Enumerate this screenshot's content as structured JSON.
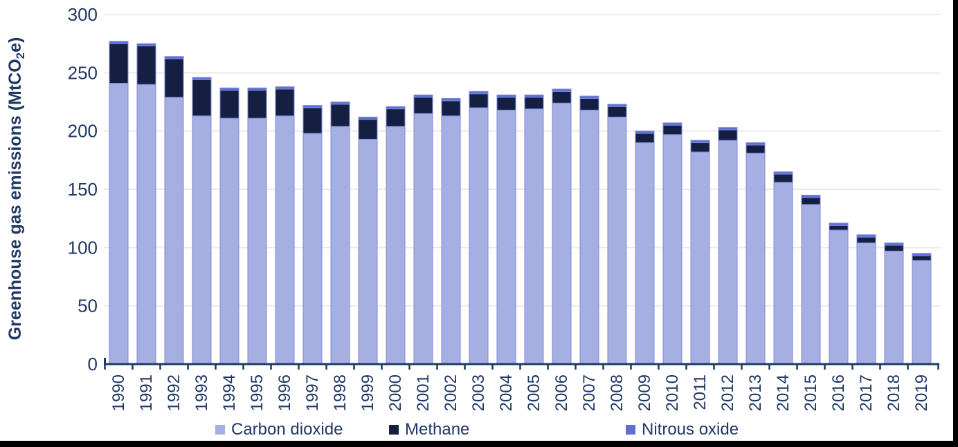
{
  "chart_data": {
    "type": "bar",
    "stacked": true,
    "title": "",
    "ylabel": "Greenhouse gas emissions (MtCO₂e)",
    "xlabel": "",
    "ylim": [
      0,
      300
    ],
    "yticks": [
      0,
      50,
      100,
      150,
      200,
      250,
      300
    ],
    "grid": true,
    "legend_position": "bottom",
    "categories": [
      "1990",
      "1991",
      "1992",
      "1993",
      "1994",
      "1995",
      "1996",
      "1997",
      "1998",
      "1999",
      "2000",
      "2001",
      "2002",
      "2003",
      "2004",
      "2005",
      "2006",
      "2007",
      "2008",
      "2009",
      "2010",
      "2011",
      "2012",
      "2013",
      "2014",
      "2015",
      "2016",
      "2017",
      "2018",
      "2019"
    ],
    "series": [
      {
        "name": "Carbon dioxide",
        "color": "#a6afe2",
        "values": [
          241,
          240,
          229,
          213,
          211,
          211,
          213,
          198,
          204,
          193,
          204,
          215,
          213,
          220,
          218,
          219,
          224,
          218,
          212,
          190,
          197,
          182,
          192,
          181,
          156,
          137,
          115,
          104,
          97,
          89
        ]
      },
      {
        "name": "Methane",
        "color": "#141f42",
        "values": [
          34,
          33,
          33,
          31,
          24,
          24,
          23,
          22,
          19,
          17,
          15,
          14,
          13,
          12,
          11,
          10,
          10,
          10,
          9,
          8,
          8,
          8,
          9,
          7,
          7,
          6,
          4,
          5,
          5,
          4
        ]
      },
      {
        "name": "Nitrous oxide",
        "color": "#5e6fd6",
        "values": [
          2,
          2,
          2,
          2,
          2,
          2,
          2,
          2,
          2,
          2,
          2,
          2,
          2,
          2,
          2,
          2,
          2,
          2,
          2,
          2,
          2,
          2,
          2,
          2,
          2,
          2,
          2,
          2,
          2,
          2
        ]
      }
    ],
    "totals": [
      277,
      275,
      264,
      246,
      237,
      237,
      238,
      222,
      225,
      212,
      221,
      231,
      228,
      234,
      231,
      231,
      236,
      230,
      223,
      200,
      207,
      192,
      203,
      190,
      165,
      145,
      121,
      111,
      104,
      95
    ]
  },
  "styles": {
    "axis_color": "#203864",
    "text_color": "#203864",
    "gridline_color": "#e9e9e9",
    "bar_stroke_color": "#7e8ada",
    "background": "#ffffff",
    "border_color": "#000000"
  }
}
